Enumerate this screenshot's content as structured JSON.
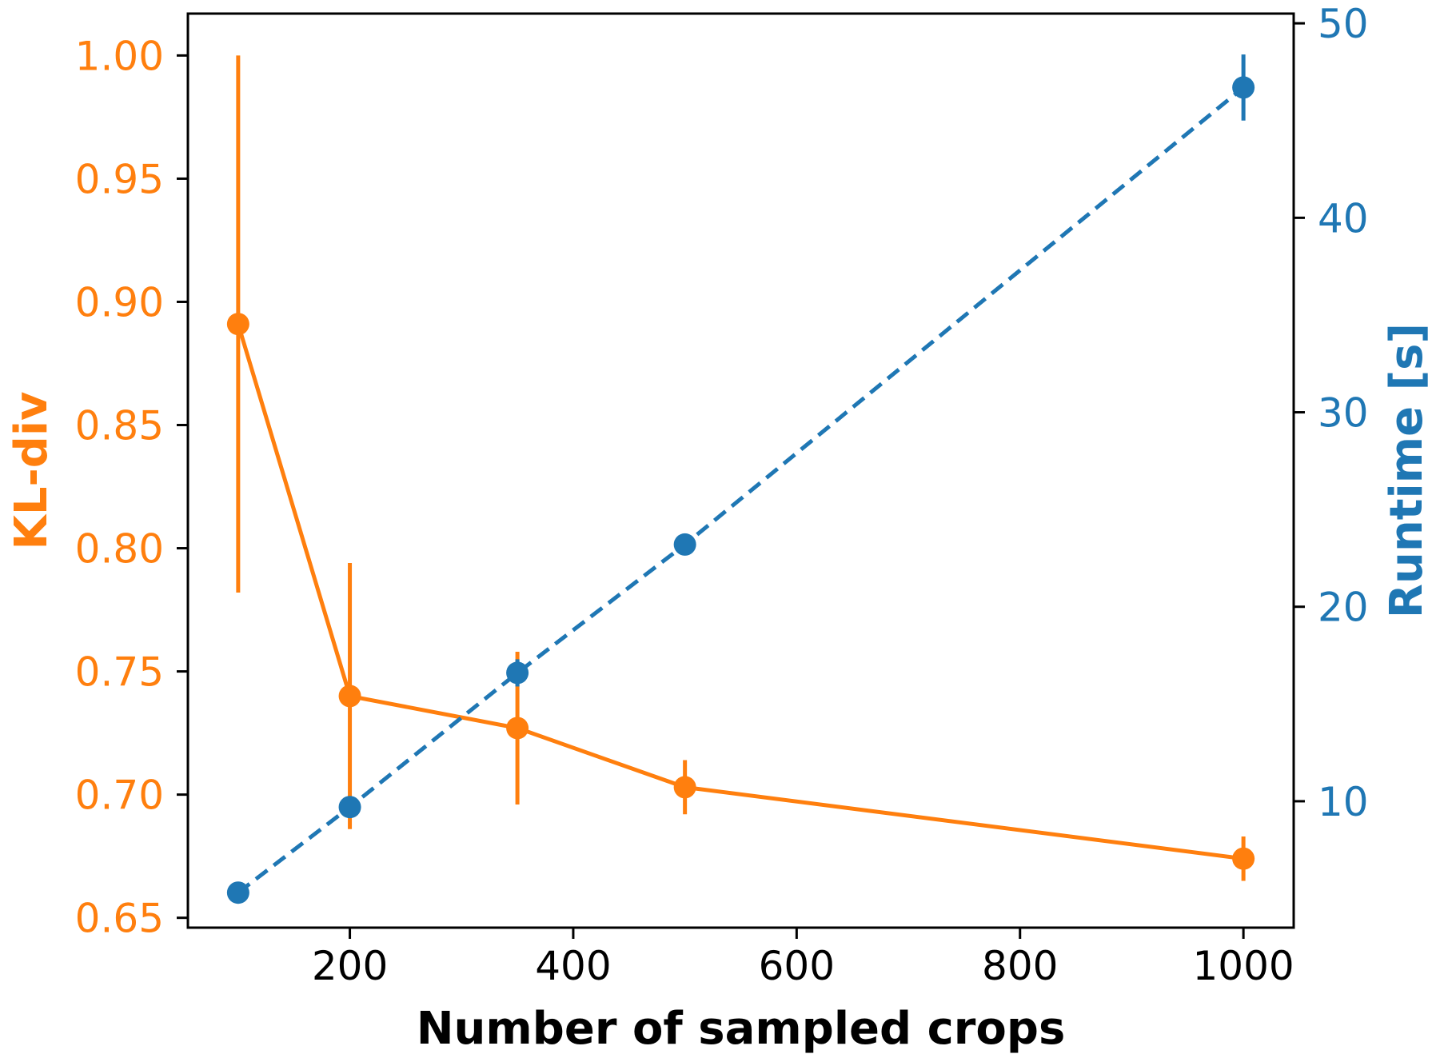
{
  "chart_data": {
    "type": "line",
    "xlabel": "Number of sampled crops",
    "ylabel_left": "KL-div",
    "ylabel_right": "Runtime [s]",
    "xlim": [
      55,
      1045
    ],
    "ylim_left": [
      0.646,
      1.017
    ],
    "ylim_right": [
      3.5,
      50.5
    ],
    "x_ticks": [
      200,
      400,
      600,
      800,
      1000
    ],
    "y_left_ticks": [
      "0.65",
      "0.70",
      "0.75",
      "0.80",
      "0.85",
      "0.90",
      "0.95",
      "1.00"
    ],
    "y_right_ticks": [
      10,
      20,
      30,
      40,
      50
    ],
    "grid": false,
    "series": [
      {
        "name": "KL-div",
        "axis": "left",
        "color": "#ff7f0e",
        "linestyle": "solid",
        "x": [
          100,
          200,
          350,
          500,
          1000
        ],
        "y": [
          0.891,
          0.74,
          0.727,
          0.703,
          0.674
        ],
        "yerr": [
          0.109,
          0.054,
          0.031,
          0.011,
          0.009
        ]
      },
      {
        "name": "Runtime [s]",
        "axis": "right",
        "color": "#1f77b4",
        "linestyle": "dashed",
        "x": [
          100,
          200,
          350,
          500,
          1000
        ],
        "y": [
          5.3,
          9.7,
          16.6,
          23.2,
          46.7
        ],
        "yerr": [
          0.3,
          0.3,
          0.7,
          0.3,
          1.7
        ]
      }
    ]
  }
}
